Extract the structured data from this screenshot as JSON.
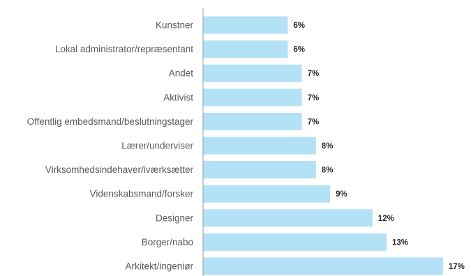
{
  "chart_data": {
    "type": "bar",
    "orientation": "horizontal",
    "title": "",
    "xlabel": "",
    "ylabel": "",
    "categories": [
      "Kunstner",
      "Lokal administrator/repræsentant",
      "Andet",
      "Aktivist",
      "Offentlig embedsmand/beslutningstager",
      "Lærer/underviser",
      "Virksomhedsindehaver/iværksætter",
      "Videnskabsmand/forsker",
      "Designer",
      "Borger/nabo",
      "Arkitekt/ingeniør"
    ],
    "values": [
      6,
      6,
      7,
      7,
      7,
      8,
      8,
      9,
      12,
      13,
      17
    ],
    "value_labels": [
      "6%",
      "6%",
      "7%",
      "7%",
      "7%",
      "8%",
      "8%",
      "9%",
      "12%",
      "13%",
      "17%"
    ],
    "unit": "%",
    "xlim": [
      0,
      17.3
    ],
    "grid": false,
    "legend": "none",
    "bar_color": "#b3e1f5",
    "axis_color": "#9a9a9a"
  }
}
